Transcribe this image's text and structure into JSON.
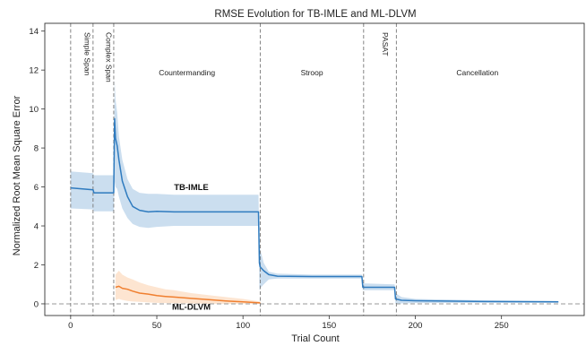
{
  "chart_data": {
    "type": "line",
    "title": "RMSE Evolution  for  TB-IMLE and  ML-DLVM",
    "xlabel": "Trial Count",
    "ylabel": "Normalized Root Mean Square Error",
    "xlim": [
      -15,
      298
    ],
    "ylim": [
      -0.6,
      14.4
    ],
    "xticks": [
      0,
      50,
      100,
      150,
      200,
      250
    ],
    "yticks": [
      0,
      2,
      4,
      6,
      8,
      10,
      12,
      14
    ],
    "grid": false,
    "baseline": 0,
    "phase_boundaries": [
      0,
      13,
      25,
      110,
      170,
      189
    ],
    "phases": [
      {
        "label": "Simple Span",
        "start": 0,
        "end": 13
      },
      {
        "label": "Complex Span",
        "start": 13,
        "end": 25
      },
      {
        "label": "Countermanding",
        "start": 25,
        "end": 110
      },
      {
        "label": "Stroop",
        "start": 110,
        "end": 170
      },
      {
        "label": "PASAT",
        "start": 170,
        "end": 189
      },
      {
        "label": "Cancellation",
        "start": 189,
        "end": 283
      }
    ],
    "series": [
      {
        "name": "TB-IMLE",
        "color": "#2f7bbf",
        "band_color": "#a8c8e4",
        "x": [
          0,
          13,
          13.5,
          25,
          25.5,
          26,
          27,
          28,
          30,
          33,
          36,
          40,
          45,
          50,
          60,
          80,
          109,
          109.5,
          110,
          112,
          115,
          120,
          140,
          169,
          169.5,
          188,
          188.5,
          192,
          200,
          240,
          283
        ],
        "y": [
          5.95,
          5.85,
          5.7,
          5.7,
          9.5,
          8.5,
          8.1,
          7.4,
          6.3,
          5.5,
          5.0,
          4.8,
          4.72,
          4.75,
          4.72,
          4.72,
          4.72,
          2.1,
          1.9,
          1.7,
          1.5,
          1.42,
          1.4,
          1.4,
          0.85,
          0.85,
          0.25,
          0.18,
          0.16,
          0.12,
          0.1
        ],
        "upper": [
          6.8,
          6.7,
          6.6,
          6.6,
          11.5,
          10.5,
          9.8,
          8.6,
          7.4,
          6.4,
          5.9,
          5.7,
          5.65,
          5.65,
          5.6,
          5.6,
          5.6,
          3.0,
          2.8,
          2.1,
          1.65,
          1.55,
          1.5,
          1.5,
          1.05,
          1.0,
          0.55,
          0.35,
          0.25,
          0.18,
          0.15
        ],
        "lower": [
          4.9,
          4.85,
          4.75,
          4.75,
          6.3,
          6.0,
          5.9,
          5.5,
          4.9,
          4.4,
          4.1,
          3.95,
          3.9,
          3.95,
          4.0,
          4.0,
          4.0,
          0.7,
          0.8,
          1.0,
          1.25,
          1.3,
          1.3,
          1.3,
          0.7,
          0.7,
          0.0,
          0.02,
          0.04,
          0.05,
          0.06
        ]
      },
      {
        "name": "ML-DLVM",
        "color": "#f07f2f",
        "band_color": "#fbd3b2",
        "x": [
          26,
          28,
          30,
          33,
          36,
          40,
          45,
          50,
          55,
          60,
          70,
          80,
          90,
          100,
          110
        ],
        "y": [
          0.85,
          0.9,
          0.8,
          0.75,
          0.65,
          0.55,
          0.5,
          0.42,
          0.38,
          0.35,
          0.28,
          0.22,
          0.15,
          0.1,
          0.05
        ],
        "upper": [
          1.5,
          1.7,
          1.5,
          1.35,
          1.25,
          1.1,
          0.95,
          0.85,
          0.75,
          0.7,
          0.55,
          0.45,
          0.35,
          0.25,
          0.12
        ],
        "lower": [
          0.2,
          0.25,
          0.2,
          0.15,
          0.12,
          0.1,
          0.07,
          0.05,
          0.04,
          0.03,
          0.02,
          0.0,
          0.0,
          0.0,
          0.0
        ]
      }
    ],
    "annotations": [
      {
        "text": "TB-IMLE",
        "x": 70,
        "y": 5.85,
        "series": "TB-IMLE"
      },
      {
        "text": "ML-DLVM",
        "x": 70,
        "y": -0.3,
        "series": "ML-DLVM"
      }
    ]
  }
}
